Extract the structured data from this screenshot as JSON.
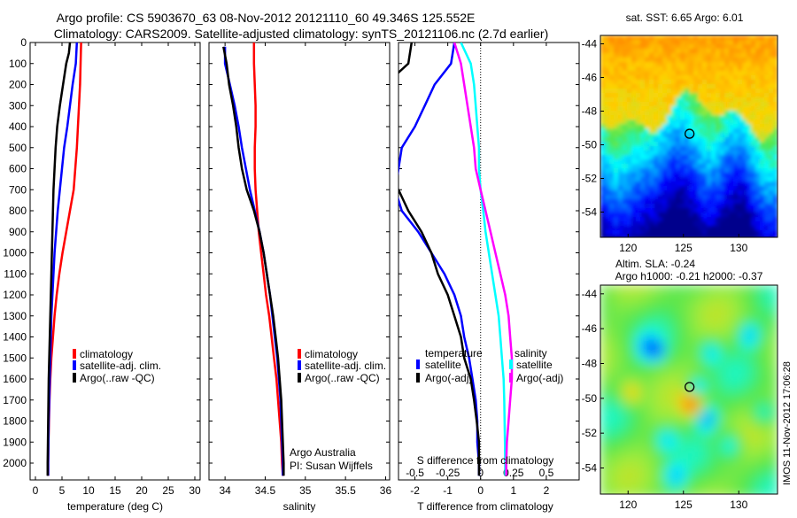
{
  "header": {
    "line1": "Argo profile: CS 5903670_63 08-Nov-2012 20121110_60 49.346S 125.552E",
    "line2": "Climatology: CARS2009. Satellite-adjusted climatology: synTS_20121106.nc (2.7d earlier)"
  },
  "colors": {
    "climatology": "#ff0000",
    "satellite_adj": "#0000ff",
    "argo": "#000000",
    "salinity_satellite": "#00ffff",
    "salinity_argo": "#ff00ff"
  },
  "chart_data": [
    {
      "id": "temperature",
      "type": "line",
      "xlabel": "temperature (deg C)",
      "ylabel": "",
      "xlim": [
        -1,
        31
      ],
      "ylim": [
        2080,
        0
      ],
      "xticks": [
        0,
        5,
        10,
        15,
        20,
        25,
        30
      ],
      "yticks": [
        0,
        100,
        200,
        300,
        400,
        500,
        600,
        700,
        800,
        900,
        1000,
        1100,
        1200,
        1300,
        1400,
        1500,
        1600,
        1700,
        1800,
        1900,
        2000
      ],
      "legend": [
        "climatology",
        "satellite-adj. clim.",
        "Argo(..raw -QC)"
      ],
      "series": [
        {
          "name": "climatology",
          "color": "#ff0000",
          "points": [
            [
              8.6,
              0
            ],
            [
              8.5,
              100
            ],
            [
              8.4,
              200
            ],
            [
              8.2,
              300
            ],
            [
              8.0,
              400
            ],
            [
              7.8,
              500
            ],
            [
              7.5,
              600
            ],
            [
              7.2,
              700
            ],
            [
              6.5,
              800
            ],
            [
              5.8,
              900
            ],
            [
              5.1,
              1000
            ],
            [
              4.5,
              1100
            ],
            [
              4.0,
              1200
            ],
            [
              3.6,
              1300
            ],
            [
              3.3,
              1400
            ],
            [
              3.0,
              1500
            ],
            [
              2.8,
              1600
            ],
            [
              2.65,
              1700
            ],
            [
              2.55,
              1800
            ],
            [
              2.45,
              1900
            ],
            [
              2.4,
              2000
            ],
            [
              2.4,
              2060
            ]
          ]
        },
        {
          "name": "satellite-adj. clim.",
          "color": "#0000ff",
          "points": [
            [
              7.8,
              0
            ],
            [
              7.6,
              100
            ],
            [
              7.0,
              200
            ],
            [
              6.5,
              300
            ],
            [
              6.0,
              400
            ],
            [
              5.4,
              500
            ],
            [
              5.0,
              600
            ],
            [
              4.6,
              700
            ],
            [
              4.2,
              800
            ],
            [
              3.9,
              900
            ],
            [
              3.6,
              1000
            ],
            [
              3.4,
              1100
            ],
            [
              3.2,
              1200
            ],
            [
              3.0,
              1300
            ],
            [
              2.9,
              1400
            ],
            [
              2.8,
              1500
            ],
            [
              2.7,
              1600
            ],
            [
              2.6,
              1700
            ],
            [
              2.5,
              1800
            ],
            [
              2.45,
              1900
            ],
            [
              2.4,
              2000
            ],
            [
              2.4,
              2060
            ]
          ]
        },
        {
          "name": "Argo(..raw -QC)",
          "color": "#000000",
          "points": [
            [
              6.5,
              0
            ],
            [
              6.3,
              50
            ],
            [
              5.8,
              100
            ],
            [
              5.2,
              200
            ],
            [
              4.6,
              300
            ],
            [
              4.1,
              400
            ],
            [
              3.8,
              500
            ],
            [
              3.6,
              600
            ],
            [
              3.4,
              700
            ],
            [
              3.3,
              800
            ],
            [
              3.2,
              900
            ],
            [
              3.1,
              1000
            ],
            [
              3.0,
              1100
            ],
            [
              2.9,
              1200
            ],
            [
              2.8,
              1300
            ],
            [
              2.7,
              1400
            ],
            [
              2.6,
              1500
            ],
            [
              2.5,
              1600
            ],
            [
              2.45,
              1700
            ],
            [
              2.4,
              1800
            ],
            [
              2.35,
              1900
            ],
            [
              2.3,
              2000
            ],
            [
              2.3,
              2060
            ]
          ]
        }
      ]
    },
    {
      "id": "salinity",
      "type": "line",
      "xlabel": "salinity",
      "ylabel": "",
      "xlim": [
        33.8,
        36.05
      ],
      "ylim": [
        2080,
        0
      ],
      "xticks": [
        34,
        34.5,
        35,
        35.5,
        36
      ],
      "legend": [
        "climatology",
        "satellite-adj. clim.",
        "Argo(..raw -QC)"
      ],
      "annotation": [
        "Argo Australia",
        "PI: Susan Wijffels"
      ],
      "series": [
        {
          "name": "climatology",
          "color": "#ff0000",
          "points": [
            [
              34.36,
              0
            ],
            [
              34.36,
              100
            ],
            [
              34.37,
              200
            ],
            [
              34.38,
              300
            ],
            [
              34.38,
              400
            ],
            [
              34.37,
              500
            ],
            [
              34.37,
              600
            ],
            [
              34.38,
              700
            ],
            [
              34.4,
              800
            ],
            [
              34.42,
              900
            ],
            [
              34.45,
              1000
            ],
            [
              34.48,
              1100
            ],
            [
              34.51,
              1200
            ],
            [
              34.55,
              1300
            ],
            [
              34.58,
              1400
            ],
            [
              34.61,
              1500
            ],
            [
              34.64,
              1600
            ],
            [
              34.66,
              1700
            ],
            [
              34.68,
              1800
            ],
            [
              34.7,
              1900
            ],
            [
              34.71,
              2000
            ],
            [
              34.72,
              2060
            ]
          ]
        },
        {
          "name": "satellite-adj. clim.",
          "color": "#0000ff",
          "points": [
            [
              34.0,
              20
            ],
            [
              34.0,
              100
            ],
            [
              34.06,
              200
            ],
            [
              34.12,
              300
            ],
            [
              34.17,
              400
            ],
            [
              34.21,
              500
            ],
            [
              34.26,
              600
            ],
            [
              34.31,
              700
            ],
            [
              34.37,
              800
            ],
            [
              34.43,
              900
            ],
            [
              34.48,
              1000
            ],
            [
              34.52,
              1100
            ],
            [
              34.56,
              1200
            ],
            [
              34.59,
              1300
            ],
            [
              34.62,
              1400
            ],
            [
              34.65,
              1500
            ],
            [
              34.67,
              1600
            ],
            [
              34.69,
              1700
            ],
            [
              34.7,
              1800
            ],
            [
              34.71,
              1900
            ],
            [
              34.72,
              2000
            ],
            [
              34.72,
              2060
            ]
          ]
        },
        {
          "name": "Argo(..raw -QC)",
          "color": "#000000",
          "points": [
            [
              33.98,
              20
            ],
            [
              34.02,
              100
            ],
            [
              34.05,
              200
            ],
            [
              34.1,
              300
            ],
            [
              34.14,
              400
            ],
            [
              34.17,
              500
            ],
            [
              34.21,
              600
            ],
            [
              34.27,
              700
            ],
            [
              34.36,
              800
            ],
            [
              34.43,
              900
            ],
            [
              34.48,
              1000
            ],
            [
              34.52,
              1100
            ],
            [
              34.56,
              1200
            ],
            [
              34.6,
              1300
            ],
            [
              34.63,
              1400
            ],
            [
              34.66,
              1500
            ],
            [
              34.68,
              1600
            ],
            [
              34.7,
              1700
            ],
            [
              34.71,
              1800
            ],
            [
              34.72,
              1900
            ],
            [
              34.73,
              2000
            ],
            [
              34.73,
              2060
            ]
          ]
        }
      ]
    },
    {
      "id": "difference",
      "type": "line",
      "xlabel": "T difference from climatology",
      "top_label": "S difference from climatology",
      "xlim": [
        -2.5,
        3
      ],
      "ylim": [
        2080,
        0
      ],
      "xticks": [
        -2,
        -1,
        0,
        1,
        2
      ],
      "top_ticks": [
        "-0.5",
        "-0.25",
        "0",
        "0.25",
        "0.5"
      ],
      "zero_line": true,
      "legend_left_title": "temperature",
      "legend_right_title": "salinity",
      "legend_left": [
        "satellite",
        "Argo(-adj)"
      ],
      "legend_right": [
        "satellite",
        "Argo(-adj)"
      ],
      "series": [
        {
          "name": "temperature satellite",
          "color": "#0000ff",
          "points": [
            [
              -0.8,
              0
            ],
            [
              -0.9,
              100
            ],
            [
              -1.4,
              200
            ],
            [
              -1.7,
              300
            ],
            [
              -2.0,
              400
            ],
            [
              -2.4,
              500
            ],
            [
              -2.5,
              600
            ],
            [
              -2.6,
              700
            ],
            [
              -2.4,
              800
            ],
            [
              -1.9,
              900
            ],
            [
              -1.5,
              1000
            ],
            [
              -1.1,
              1100
            ],
            [
              -0.8,
              1200
            ],
            [
              -0.6,
              1300
            ],
            [
              -0.5,
              1400
            ],
            [
              -0.35,
              1500
            ],
            [
              -0.25,
              1600
            ],
            [
              -0.15,
              1700
            ],
            [
              -0.1,
              1800
            ],
            [
              -0.1,
              1900
            ],
            [
              -0.05,
              2000
            ],
            [
              -0.05,
              2060
            ]
          ]
        },
        {
          "name": "temperature Argo(-adj)",
          "color": "#000000",
          "points": [
            [
              -2.1,
              0
            ],
            [
              -2.2,
              100
            ],
            [
              -2.9,
              200
            ],
            [
              -3.4,
              300
            ],
            [
              -3.6,
              400
            ],
            [
              -3.5,
              500
            ],
            [
              -3.5,
              600
            ],
            [
              -2.5,
              700
            ],
            [
              -2.2,
              800
            ],
            [
              -1.8,
              900
            ],
            [
              -1.5,
              1000
            ],
            [
              -1.3,
              1100
            ],
            [
              -1.0,
              1200
            ],
            [
              -0.8,
              1300
            ],
            [
              -0.6,
              1400
            ],
            [
              -0.5,
              1500
            ],
            [
              -0.3,
              1600
            ],
            [
              -0.2,
              1700
            ],
            [
              -0.12,
              1800
            ],
            [
              -0.05,
              1900
            ],
            [
              -0.05,
              2000
            ],
            [
              -0.05,
              2060
            ]
          ]
        },
        {
          "name": "salinity satellite",
          "color": "#00ffff",
          "points": [
            [
              -0.6,
              0
            ],
            [
              -0.3,
              100
            ],
            [
              -0.2,
              200
            ],
            [
              -0.15,
              300
            ],
            [
              -0.1,
              400
            ],
            [
              -0.05,
              500
            ],
            [
              -0.05,
              600
            ],
            [
              0.0,
              700
            ],
            [
              0.08,
              800
            ],
            [
              0.15,
              900
            ],
            [
              0.25,
              1000
            ],
            [
              0.35,
              1100
            ],
            [
              0.45,
              1200
            ],
            [
              0.55,
              1300
            ],
            [
              0.6,
              1400
            ],
            [
              0.65,
              1500
            ],
            [
              0.7,
              1600
            ],
            [
              0.72,
              1700
            ],
            [
              0.73,
              1800
            ],
            [
              0.74,
              1900
            ],
            [
              0.75,
              2000
            ],
            [
              0.75,
              2060
            ]
          ]
        },
        {
          "name": "salinity Argo(-adj)",
          "color": "#ff00ff",
          "points": [
            [
              -0.8,
              0
            ],
            [
              -0.6,
              100
            ],
            [
              -0.5,
              200
            ],
            [
              -0.4,
              300
            ],
            [
              -0.3,
              400
            ],
            [
              -0.2,
              500
            ],
            [
              -0.15,
              600
            ],
            [
              0.0,
              700
            ],
            [
              0.15,
              800
            ],
            [
              0.3,
              900
            ],
            [
              0.45,
              1000
            ],
            [
              0.6,
              1100
            ],
            [
              0.75,
              1200
            ],
            [
              0.85,
              1300
            ],
            [
              0.9,
              1400
            ],
            [
              0.95,
              1500
            ],
            [
              0.95,
              1600
            ],
            [
              0.9,
              1700
            ],
            [
              0.85,
              1800
            ],
            [
              0.8,
              1900
            ],
            [
              0.78,
              2000
            ],
            [
              0.78,
              2060
            ]
          ]
        }
      ]
    },
    {
      "id": "sst_map",
      "type": "heatmap",
      "title": "sat. SST: 6.65 Argo: 6.01",
      "xticks": [
        120,
        125,
        130
      ],
      "yticks": [
        -44,
        -46,
        -48,
        -50,
        -52,
        -54
      ],
      "xlim": [
        117.5,
        133.5
      ],
      "ylim": [
        -55.5,
        -43.5
      ],
      "marker": [
        125.552,
        -49.346
      ]
    },
    {
      "id": "sla_map",
      "type": "heatmap",
      "title_line1": "Altim. SLA: -0.24",
      "title_line2": "Argo h1000: -0.21 h2000: -0.37",
      "side_label": "IMOS 11-Nov-2012 17:06:28",
      "xticks": [
        120,
        125,
        130
      ],
      "yticks": [
        -44,
        -46,
        -48,
        -50,
        -52,
        -54
      ],
      "xlim": [
        117.5,
        133.5
      ],
      "ylim": [
        -55.5,
        -43.5
      ],
      "marker": [
        125.552,
        -49.346
      ]
    }
  ]
}
